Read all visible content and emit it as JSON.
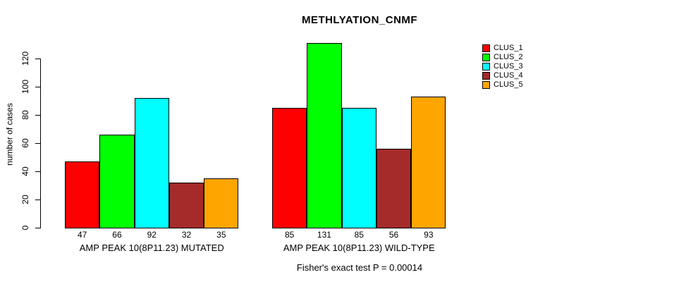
{
  "title": "METHLYATION_CNMF",
  "footer": {
    "note": "Fisher's exact test P = 0.00014"
  },
  "chart_data": {
    "type": "bar",
    "title": "METHLYATION_CNMF",
    "xlabel": "",
    "ylabel": "number of cases",
    "ylim": [
      0,
      131
    ],
    "yticks": [
      0,
      20,
      40,
      60,
      80,
      100,
      120
    ],
    "grid": false,
    "legend_position": "right-outside",
    "bar_value_labels_shown": true,
    "categories": [
      "AMP PEAK 10(8P11.23) MUTATED",
      "AMP PEAK 10(8P11.23) WILD-TYPE"
    ],
    "series": [
      {
        "name": "CLUS_1",
        "color": "#FF0000",
        "values": [
          47,
          85
        ]
      },
      {
        "name": "CLUS_2",
        "color": "#00FF00",
        "values": [
          66,
          131
        ]
      },
      {
        "name": "CLUS_3",
        "color": "#00FFFF",
        "values": [
          92,
          85
        ]
      },
      {
        "name": "CLUS_4",
        "color": "#A52A2A",
        "values": [
          32,
          56
        ]
      },
      {
        "name": "CLUS_5",
        "color": "#FFA500",
        "values": [
          35,
          93
        ]
      }
    ]
  }
}
